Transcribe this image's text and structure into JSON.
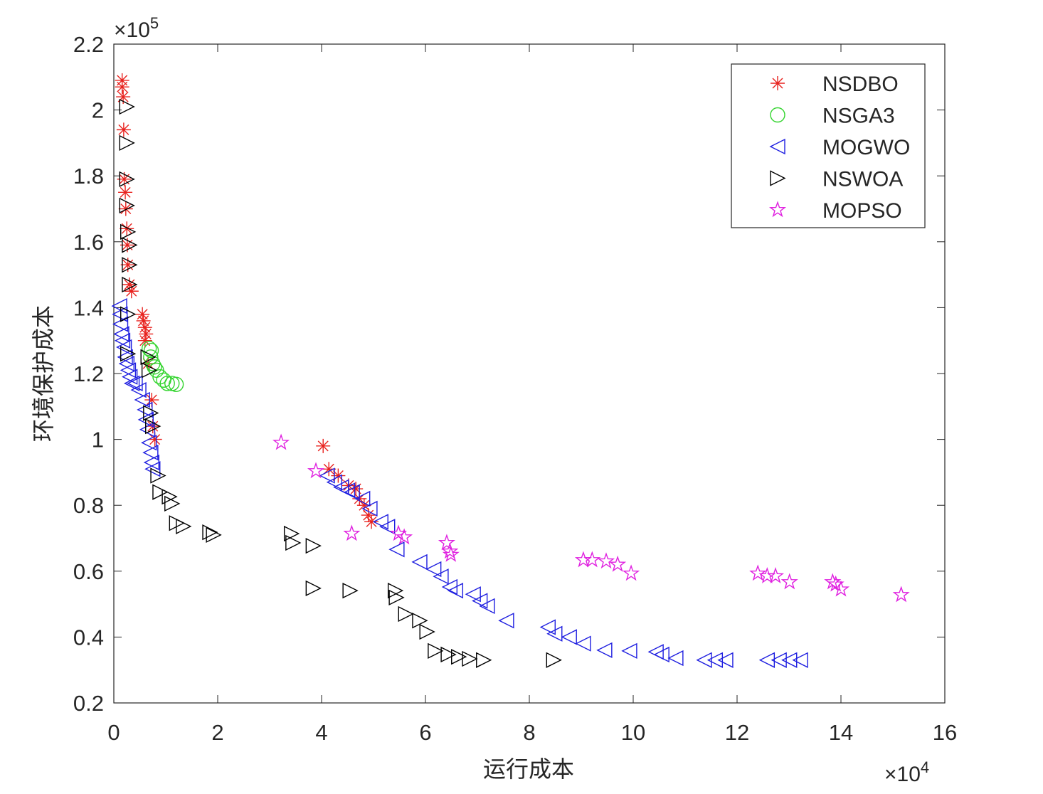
{
  "chart_data": {
    "type": "scatter",
    "title": "",
    "xlabel": "运行成本",
    "ylabel": "环境保护成本",
    "x_multiplier": "×10^4",
    "y_multiplier": "×10^5",
    "xlim": [
      0,
      16
    ],
    "ylim": [
      0.2,
      2.2
    ],
    "xticks": [
      "0",
      "2",
      "4",
      "6",
      "8",
      "10",
      "12",
      "14",
      "16"
    ],
    "yticks": [
      "0.2",
      "0.4",
      "0.6",
      "0.8",
      "1",
      "1.2",
      "1.4",
      "1.6",
      "1.8",
      "2",
      "2.2"
    ],
    "grid": false,
    "legend_position": "top-right",
    "series": [
      {
        "name": "NSDBO",
        "marker": "asterisk",
        "color": "#e8221e",
        "x": [
          0.16,
          0.16,
          0.18,
          0.19,
          0.2,
          0.22,
          0.23,
          0.25,
          0.26,
          0.27,
          0.3,
          0.34,
          0.55,
          0.57,
          0.6,
          0.62,
          0.6,
          0.66,
          0.73,
          0.75,
          0.79,
          4.03,
          4.14,
          4.32,
          4.52,
          4.66,
          4.73,
          4.82,
          4.9,
          4.96
        ],
        "y": [
          2.09,
          2.07,
          2.04,
          1.94,
          1.79,
          1.75,
          1.7,
          1.64,
          1.59,
          1.53,
          1.47,
          1.45,
          1.38,
          1.36,
          1.34,
          1.32,
          1.3,
          1.23,
          1.12,
          1.04,
          1.0,
          0.98,
          0.91,
          0.89,
          0.86,
          0.85,
          0.82,
          0.8,
          0.77,
          0.75
        ]
      },
      {
        "name": "NSGA3",
        "marker": "circle",
        "color": "#33d42e",
        "x": [
          0.68,
          0.71,
          0.72,
          0.75,
          0.78,
          0.82,
          0.89,
          0.96,
          1.03,
          1.12,
          1.2
        ],
        "y": [
          1.276,
          1.25,
          1.27,
          1.23,
          1.22,
          1.21,
          1.19,
          1.18,
          1.17,
          1.17,
          1.167
        ]
      },
      {
        "name": "MOGWO",
        "marker": "triangle-left",
        "color": "#1f1fe0",
        "x": [
          0.11,
          0.12,
          0.13,
          0.15,
          0.17,
          0.2,
          0.22,
          0.25,
          0.28,
          0.31,
          0.35,
          0.41,
          0.48,
          0.55,
          0.6,
          0.62,
          0.65,
          0.68,
          0.71,
          0.73,
          0.75,
          4.11,
          4.25,
          4.38,
          4.5,
          4.59,
          4.79,
          4.93,
          5.14,
          5.27,
          5.45,
          5.89,
          6.16,
          6.3,
          6.47,
          6.58,
          6.92,
          7.05,
          7.19,
          7.56,
          8.36,
          8.49,
          8.77,
          9.04,
          9.45,
          9.93,
          10.44,
          10.55,
          10.82,
          11.37,
          11.58,
          11.78,
          12.58,
          12.81,
          13.01,
          13.22
        ],
        "y": [
          1.405,
          1.38,
          1.35,
          1.32,
          1.3,
          1.28,
          1.25,
          1.23,
          1.21,
          1.19,
          1.17,
          1.17,
          1.15,
          1.12,
          1.09,
          1.06,
          1.03,
          0.99,
          0.96,
          0.93,
          0.91,
          0.89,
          0.87,
          0.855,
          0.845,
          0.84,
          0.82,
          0.79,
          0.75,
          0.735,
          0.666,
          0.628,
          0.606,
          0.584,
          0.552,
          0.541,
          0.53,
          0.51,
          0.494,
          0.45,
          0.43,
          0.41,
          0.4,
          0.38,
          0.36,
          0.358,
          0.355,
          0.347,
          0.336,
          0.33,
          0.33,
          0.33,
          0.33,
          0.33,
          0.33,
          0.33
        ]
      },
      {
        "name": "NSWOA",
        "marker": "triangle-right",
        "color": "#000000",
        "x": [
          0.25,
          0.25,
          0.25,
          0.25,
          0.27,
          0.3,
          0.3,
          0.3,
          0.27,
          0.27,
          0.66,
          0.68,
          0.71,
          0.75,
          0.85,
          0.89,
          1.07,
          1.12,
          1.21,
          1.34,
          1.85,
          1.92,
          3.42,
          3.45,
          3.84,
          3.84,
          4.55,
          5.42,
          5.44,
          5.62,
          5.89,
          6.03,
          6.19,
          6.44,
          6.64,
          6.85,
          7.12,
          8.47
        ],
        "y": [
          2.01,
          1.9,
          1.79,
          1.71,
          1.63,
          1.59,
          1.53,
          1.47,
          1.38,
          1.26,
          1.25,
          1.21,
          1.08,
          1.04,
          0.89,
          0.84,
          0.826,
          0.805,
          0.746,
          0.736,
          0.718,
          0.71,
          0.714,
          0.686,
          0.677,
          0.548,
          0.541,
          0.541,
          0.52,
          0.47,
          0.45,
          0.416,
          0.358,
          0.347,
          0.34,
          0.334,
          0.33,
          0.33
        ]
      },
      {
        "name": "MOPSO",
        "marker": "pentagram",
        "color": "#e020e0",
        "x": [
          3.22,
          3.89,
          4.58,
          5.48,
          5.59,
          6.41,
          6.47,
          6.49,
          9.04,
          9.21,
          9.48,
          9.7,
          9.96,
          12.4,
          12.58,
          12.74,
          13.01,
          13.84,
          13.9,
          14.0,
          15.16
        ],
        "y": [
          0.99,
          0.904,
          0.714,
          0.714,
          0.703,
          0.686,
          0.66,
          0.65,
          0.634,
          0.634,
          0.63,
          0.62,
          0.593,
          0.593,
          0.585,
          0.585,
          0.567,
          0.567,
          0.56,
          0.545,
          0.528
        ]
      }
    ]
  }
}
